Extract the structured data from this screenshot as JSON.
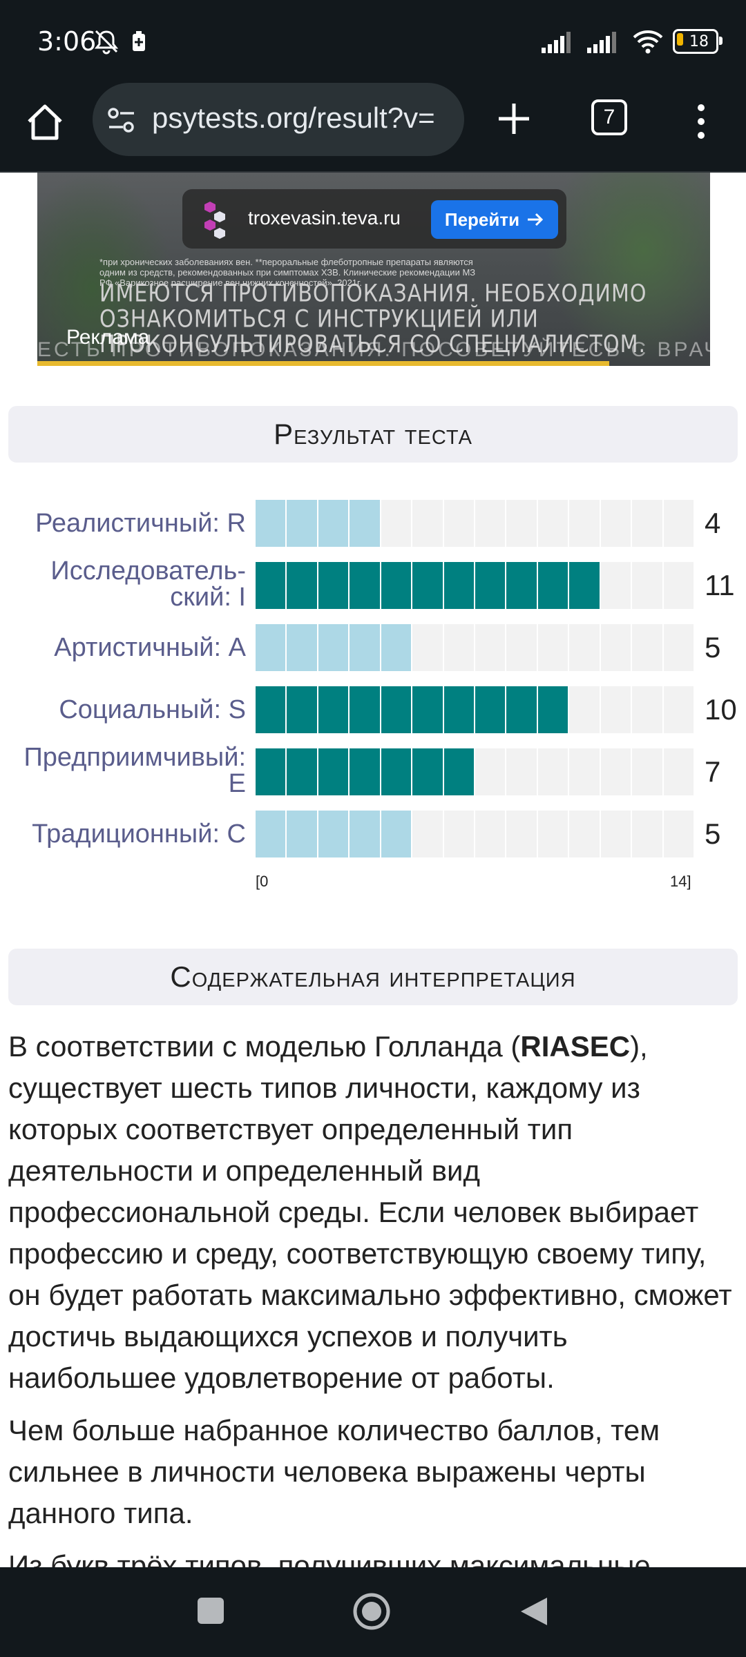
{
  "status": {
    "time": "3:06",
    "battery": "18",
    "mute_icon": "bell-off-icon",
    "battery_saver_icon": "battery-charging-icon"
  },
  "browser": {
    "url": "psytests.org/result?v=",
    "tab_count": "7"
  },
  "ad": {
    "domain": "troxevasin.teva.ru",
    "go_label": "Перейти",
    "label": "Реклама",
    "small_notice": "*при хронических заболеваниях вен. **пероральные флеботропные препараты являются одним из средств, рекомендованных при симптомах ХЗВ. Клинические рекомендации МЗ РФ «Варикозное расширение вен нижних конечностей», 2021г.",
    "big_notice": "Имеются противопоказания. Необходимо ознакомиться с инструкцией или проконсультироваться со специалистом.",
    "bottom_notice": "есть противопоказания. посоветуйтесь с врачом.",
    "progress": 0.85
  },
  "result": {
    "title": "Результат теста"
  },
  "chart_data": {
    "type": "bar",
    "orientation": "horizontal",
    "categories": [
      "Реалистичный: R",
      "Исследователь-ский: I",
      "Артистичный: A",
      "Социальный: S",
      "Предприимчивый: E",
      "Традиционный: C"
    ],
    "label_lines": [
      [
        "Реалистичный: R"
      ],
      [
        "Исследователь-",
        "ский: I"
      ],
      [
        "Артистичный: A"
      ],
      [
        "Социальный: S"
      ],
      [
        "Предприимчивый:",
        "E"
      ],
      [
        "Традиционный: C"
      ]
    ],
    "values": [
      4,
      11,
      5,
      10,
      7,
      5
    ],
    "value_labels": [
      "4",
      "11",
      "5",
      "10",
      "7",
      "5"
    ],
    "highlight": [
      false,
      true,
      false,
      true,
      true,
      false
    ],
    "xlim": [
      0,
      14
    ],
    "min_label": "[0",
    "max_label": "14]",
    "colors": {
      "normal": "#add8e6",
      "high": "#008080",
      "track": "#f2f2f2"
    }
  },
  "interpretation": {
    "title": "Содержательная интерпретация",
    "p1_before": "В соответствии с моделью Голланда (",
    "p1_bold": "RIASEC",
    "p1_after": "), существует шесть типов личности, каждому из которых соответствует определенный тип деятельности и определенный вид профессиональной среды. Если человек выбирает профессию и среду, соответствующую своему типу, он будет работать максимально эффективно, сможет достичь выдающихся успехов и получить наибольшее удовлетворение от работы.",
    "p2": "Чем больше набранное количество баллов, тем сильнее в личности человека выражены черты данного типа.",
    "p3_partial": "Из букв трёх типов, получивших максимальные"
  }
}
